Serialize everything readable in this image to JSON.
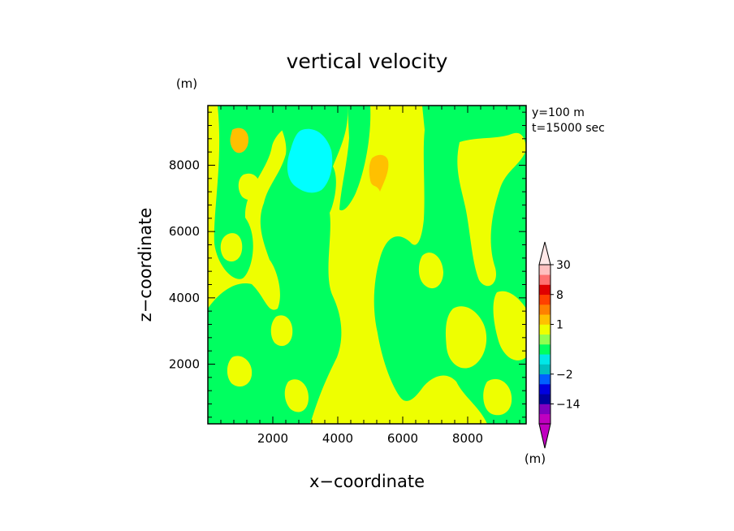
{
  "chart_data": {
    "type": "heatmap",
    "title": "vertical velocity",
    "xlabel": "x−coordinate",
    "ylabel": "z−coordinate",
    "x_unit": "(m)",
    "y_unit": "(m)",
    "info": [
      "y=100  m",
      "t=15000 sec"
    ],
    "xlim": [
      0,
      9800
    ],
    "ylim": [
      200,
      9800
    ],
    "x_ticks": [
      2000,
      4000,
      6000,
      8000
    ],
    "y_ticks": [
      2000,
      4000,
      6000,
      8000
    ],
    "x_tick_labels": [
      "2000",
      "4000",
      "6000",
      "8000"
    ],
    "y_tick_labels": [
      "2000",
      "4000",
      "6000",
      "8000"
    ],
    "colorbar": {
      "unit": "(m)",
      "labels": [
        {
          "text": "30",
          "value": 30
        },
        {
          "text": "8",
          "value": 8
        },
        {
          "text": "1",
          "value": 1
        },
        {
          "text": "−2",
          "value": -2
        },
        {
          "text": "−14",
          "value": -14
        }
      ],
      "levels": [
        -30,
        -20,
        -14,
        -8,
        -4,
        -2,
        -1,
        -0.5,
        0,
        0.5,
        1,
        2,
        4,
        8,
        14,
        20,
        30
      ],
      "colors": [
        "#c000c0",
        "#8000c0",
        "#0000a0",
        "#0000e0",
        "#0060ff",
        "#00c0c0",
        "#00e8e8",
        "#00ff60",
        "#90ff50",
        "#eeff00",
        "#ffc000",
        "#ff8000",
        "#ff4000",
        "#e00000",
        "#ff7070",
        "#ffc0c0"
      ],
      "under_color": "#c000c0",
      "over_color": "#ffe8e8"
    },
    "field_colors": {
      "negative_small": "#00ff60",
      "positive_small": "#eeff00",
      "negative_medium": "#00ffff",
      "positive_medium": "#ffc000"
    }
  }
}
